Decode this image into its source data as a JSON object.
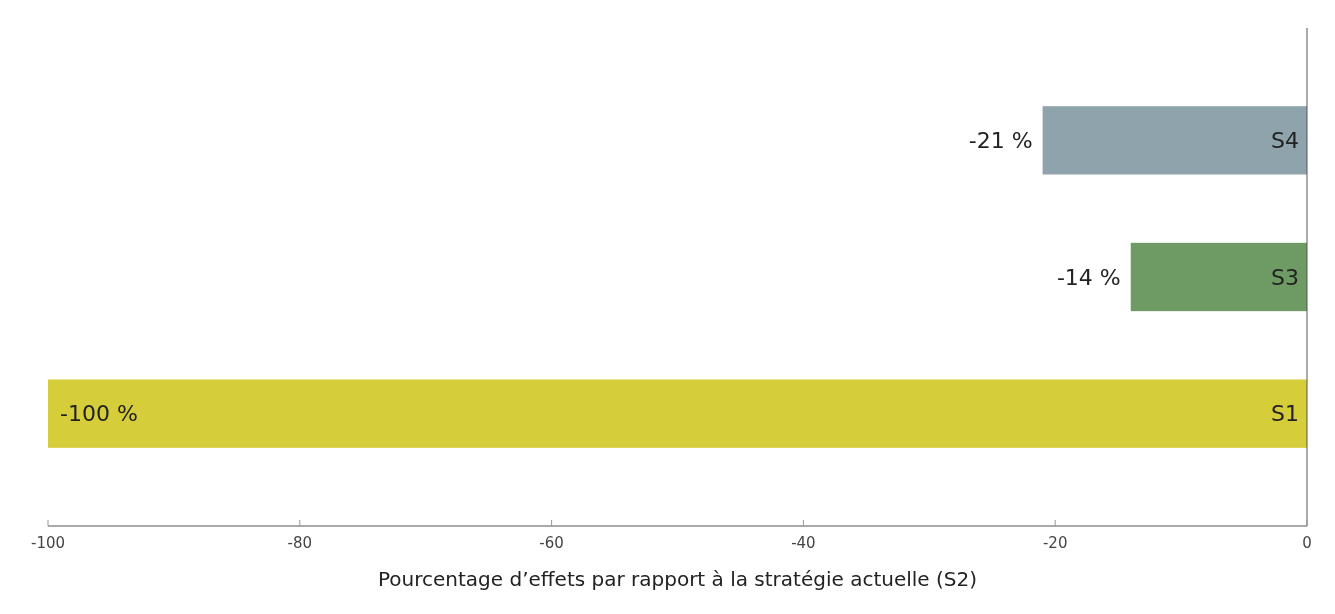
{
  "chart_data": {
    "type": "bar",
    "orientation": "horizontal",
    "xlabel": "Pourcentage d’effets par rapport à la stratégie actuelle (S2)",
    "categories": [
      "S4",
      "S3",
      "S1"
    ],
    "values": [
      -21,
      -14,
      -100
    ],
    "colors": [
      "#8fa3ad",
      "#6e9a63",
      "#d6cd3a"
    ],
    "value_labels": [
      "-21 %",
      "-14 %",
      "-100 %"
    ],
    "xlim": [
      -100,
      0
    ],
    "xticks": [
      -100,
      -80,
      -60,
      -40,
      -20,
      0
    ],
    "grid": false
  }
}
